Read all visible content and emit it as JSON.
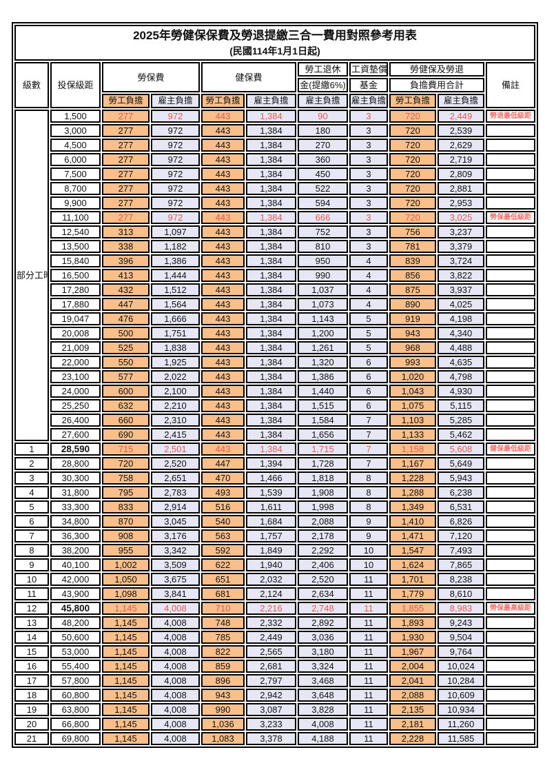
{
  "title": {
    "line1": "2025年勞健保保費及勞退提繳三合一費用對照參考用表",
    "line2": "(民國114年1月1日起)"
  },
  "header": {
    "grade": "級數",
    "bracket": "投保級距",
    "labor_insurance": "勞保費",
    "health_insurance": "健保費",
    "pension_line1": "勞工退休",
    "pension_line2": "金(提繳6%)",
    "wage_fund_line1": "工資墊償",
    "wage_fund_line2": "基金",
    "total_line1": "勞健保及勞退",
    "total_line2": "負擔費用合計",
    "remark": "備註",
    "employee_label": "勞工負擔",
    "employer_label": "雇主負擔"
  },
  "part_time_label": "部分工時",
  "colors": {
    "employee_bg": "#F9BF8B",
    "employer_bg": "#E7E6F5",
    "highlight_red": "#E8584F",
    "remark_red": "#F0716B",
    "border": "#000000"
  },
  "rows": [
    {
      "grade": "部分工時",
      "gradeSpan": 23,
      "bracket": "1,500",
      "cells": [
        "277",
        "972",
        "443",
        "1,384",
        "90",
        "3",
        "720",
        "2,449"
      ],
      "remark": "勞退最低級距",
      "hl": true
    },
    {
      "bracket": "3,000",
      "cells": [
        "277",
        "972",
        "443",
        "1,384",
        "180",
        "3",
        "720",
        "2,539"
      ],
      "remark": ""
    },
    {
      "bracket": "4,500",
      "cells": [
        "277",
        "972",
        "443",
        "1,384",
        "270",
        "3",
        "720",
        "2,629"
      ],
      "remark": ""
    },
    {
      "bracket": "6,000",
      "cells": [
        "277",
        "972",
        "443",
        "1,384",
        "360",
        "3",
        "720",
        "2,719"
      ],
      "remark": ""
    },
    {
      "bracket": "7,500",
      "cells": [
        "277",
        "972",
        "443",
        "1,384",
        "450",
        "3",
        "720",
        "2,809"
      ],
      "remark": ""
    },
    {
      "bracket": "8,700",
      "cells": [
        "277",
        "972",
        "443",
        "1,384",
        "522",
        "3",
        "720",
        "2,881"
      ],
      "remark": ""
    },
    {
      "bracket": "9,900",
      "cells": [
        "277",
        "972",
        "443",
        "1,384",
        "594",
        "3",
        "720",
        "2,953"
      ],
      "remark": ""
    },
    {
      "bracket": "11,100",
      "cells": [
        "277",
        "972",
        "443",
        "1,384",
        "666",
        "3",
        "720",
        "3,025"
      ],
      "remark": "勞保最低級距",
      "hl": true
    },
    {
      "bracket": "12,540",
      "cells": [
        "313",
        "1,097",
        "443",
        "1,384",
        "752",
        "3",
        "756",
        "3,237"
      ],
      "remark": ""
    },
    {
      "bracket": "13,500",
      "cells": [
        "338",
        "1,182",
        "443",
        "1,384",
        "810",
        "3",
        "781",
        "3,379"
      ],
      "remark": ""
    },
    {
      "bracket": "15,840",
      "cells": [
        "396",
        "1,386",
        "443",
        "1,384",
        "950",
        "4",
        "839",
        "3,724"
      ],
      "remark": ""
    },
    {
      "bracket": "16,500",
      "cells": [
        "413",
        "1,444",
        "443",
        "1,384",
        "990",
        "4",
        "856",
        "3,822"
      ],
      "remark": ""
    },
    {
      "bracket": "17,280",
      "cells": [
        "432",
        "1,512",
        "443",
        "1,384",
        "1,037",
        "4",
        "875",
        "3,937"
      ],
      "remark": ""
    },
    {
      "bracket": "17,880",
      "cells": [
        "447",
        "1,564",
        "443",
        "1,384",
        "1,073",
        "4",
        "890",
        "4,025"
      ],
      "remark": ""
    },
    {
      "bracket": "19,047",
      "cells": [
        "476",
        "1,666",
        "443",
        "1,384",
        "1,143",
        "5",
        "919",
        "4,198"
      ],
      "remark": ""
    },
    {
      "bracket": "20,008",
      "cells": [
        "500",
        "1,751",
        "443",
        "1,384",
        "1,200",
        "5",
        "943",
        "4,340"
      ],
      "remark": ""
    },
    {
      "bracket": "21,009",
      "cells": [
        "525",
        "1,838",
        "443",
        "1,384",
        "1,261",
        "5",
        "968",
        "4,488"
      ],
      "remark": ""
    },
    {
      "bracket": "22,000",
      "cells": [
        "550",
        "1,925",
        "443",
        "1,384",
        "1,320",
        "6",
        "993",
        "4,635"
      ],
      "remark": ""
    },
    {
      "bracket": "23,100",
      "cells": [
        "577",
        "2,022",
        "443",
        "1,384",
        "1,386",
        "6",
        "1,020",
        "4,798"
      ],
      "remark": ""
    },
    {
      "bracket": "24,000",
      "cells": [
        "600",
        "2,100",
        "443",
        "1,384",
        "1,440",
        "6",
        "1,043",
        "4,930"
      ],
      "remark": ""
    },
    {
      "bracket": "25,250",
      "cells": [
        "632",
        "2,210",
        "443",
        "1,384",
        "1,515",
        "6",
        "1,075",
        "5,115"
      ],
      "remark": ""
    },
    {
      "bracket": "26,400",
      "cells": [
        "660",
        "2,310",
        "443",
        "1,384",
        "1,584",
        "7",
        "1,103",
        "5,285"
      ],
      "remark": ""
    },
    {
      "bracket": "27,600",
      "cells": [
        "690",
        "2,415",
        "443",
        "1,384",
        "1,656",
        "7",
        "1,133",
        "5,462"
      ],
      "remark": ""
    },
    {
      "grade": "1",
      "bracket": "28,590",
      "bold": true,
      "cells": [
        "715",
        "2,501",
        "443",
        "1,384",
        "1,715",
        "7",
        "1,158",
        "5,608"
      ],
      "remark": "健保最低級距",
      "hl": true
    },
    {
      "grade": "2",
      "bracket": "28,800",
      "cells": [
        "720",
        "2,520",
        "447",
        "1,394",
        "1,728",
        "7",
        "1,167",
        "5,649"
      ],
      "remark": ""
    },
    {
      "grade": "3",
      "bracket": "30,300",
      "cells": [
        "758",
        "2,651",
        "470",
        "1,466",
        "1,818",
        "8",
        "1,228",
        "5,943"
      ],
      "remark": ""
    },
    {
      "grade": "4",
      "bracket": "31,800",
      "cells": [
        "795",
        "2,783",
        "493",
        "1,539",
        "1,908",
        "8",
        "1,288",
        "6,238"
      ],
      "remark": ""
    },
    {
      "grade": "5",
      "bracket": "33,300",
      "cells": [
        "833",
        "2,914",
        "516",
        "1,611",
        "1,998",
        "8",
        "1,349",
        "6,531"
      ],
      "remark": ""
    },
    {
      "grade": "6",
      "bracket": "34,800",
      "cells": [
        "870",
        "3,045",
        "540",
        "1,684",
        "2,088",
        "9",
        "1,410",
        "6,826"
      ],
      "remark": ""
    },
    {
      "grade": "7",
      "bracket": "36,300",
      "cells": [
        "908",
        "3,176",
        "563",
        "1,757",
        "2,178",
        "9",
        "1,471",
        "7,120"
      ],
      "remark": ""
    },
    {
      "grade": "8",
      "bracket": "38,200",
      "cells": [
        "955",
        "3,342",
        "592",
        "1,849",
        "2,292",
        "10",
        "1,547",
        "7,493"
      ],
      "remark": ""
    },
    {
      "grade": "9",
      "bracket": "40,100",
      "cells": [
        "1,002",
        "3,509",
        "622",
        "1,940",
        "2,406",
        "10",
        "1,624",
        "7,865"
      ],
      "remark": ""
    },
    {
      "grade": "10",
      "bracket": "42,000",
      "cells": [
        "1,050",
        "3,675",
        "651",
        "2,032",
        "2,520",
        "11",
        "1,701",
        "8,238"
      ],
      "remark": ""
    },
    {
      "grade": "11",
      "bracket": "43,900",
      "cells": [
        "1,098",
        "3,841",
        "681",
        "2,124",
        "2,634",
        "11",
        "1,779",
        "8,610"
      ],
      "remark": ""
    },
    {
      "grade": "12",
      "bracket": "45,800",
      "bold": true,
      "cells": [
        "1,145",
        "4,008",
        "710",
        "2,216",
        "2,748",
        "11",
        "1,855",
        "8,983"
      ],
      "remark": "勞保最高級距",
      "hl": true
    },
    {
      "grade": "13",
      "bracket": "48,200",
      "cells": [
        "1,145",
        "4,008",
        "748",
        "2,332",
        "2,892",
        "11",
        "1,893",
        "9,243"
      ],
      "remark": ""
    },
    {
      "grade": "14",
      "bracket": "50,600",
      "cells": [
        "1,145",
        "4,008",
        "785",
        "2,449",
        "3,036",
        "11",
        "1,930",
        "9,504"
      ],
      "remark": ""
    },
    {
      "grade": "15",
      "bracket": "53,000",
      "cells": [
        "1,145",
        "4,008",
        "822",
        "2,565",
        "3,180",
        "11",
        "1,967",
        "9,764"
      ],
      "remark": ""
    },
    {
      "grade": "16",
      "bracket": "55,400",
      "cells": [
        "1,145",
        "4,008",
        "859",
        "2,681",
        "3,324",
        "11",
        "2,004",
        "10,024"
      ],
      "remark": ""
    },
    {
      "grade": "17",
      "bracket": "57,800",
      "cells": [
        "1,145",
        "4,008",
        "896",
        "2,797",
        "3,468",
        "11",
        "2,041",
        "10,284"
      ],
      "remark": ""
    },
    {
      "grade": "18",
      "bracket": "60,800",
      "cells": [
        "1,145",
        "4,008",
        "943",
        "2,942",
        "3,648",
        "11",
        "2,088",
        "10,609"
      ],
      "remark": ""
    },
    {
      "grade": "19",
      "bracket": "63,800",
      "cells": [
        "1,145",
        "4,008",
        "990",
        "3,087",
        "3,828",
        "11",
        "2,135",
        "10,934"
      ],
      "remark": ""
    },
    {
      "grade": "20",
      "bracket": "66,800",
      "cells": [
        "1,145",
        "4,008",
        "1,036",
        "3,233",
        "4,008",
        "11",
        "2,181",
        "11,260"
      ],
      "remark": ""
    },
    {
      "grade": "21",
      "bracket": "69,800",
      "cells": [
        "1,145",
        "4,008",
        "1,083",
        "3,378",
        "4,188",
        "11",
        "2,228",
        "11,585"
      ],
      "remark": ""
    }
  ]
}
